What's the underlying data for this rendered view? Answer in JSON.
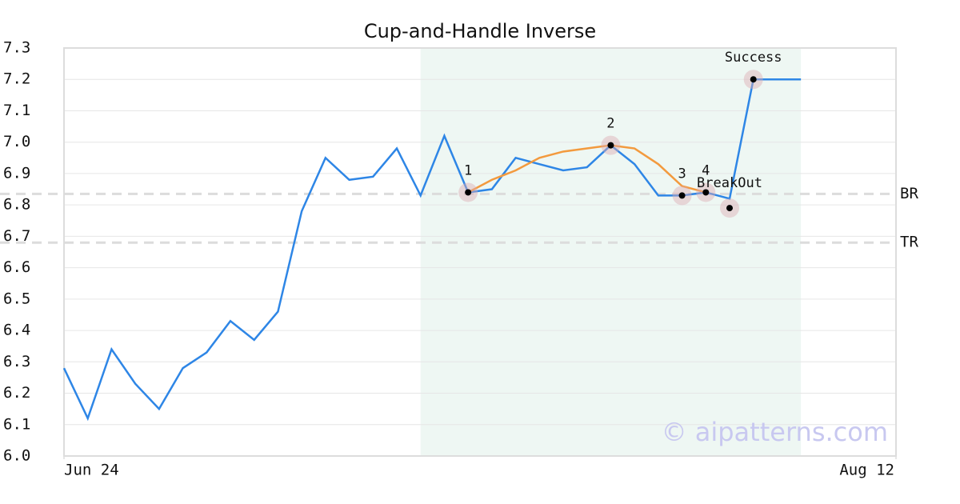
{
  "chart_data": {
    "type": "line",
    "title": "Cup-and-Handle Inverse",
    "watermark": "© aipatterns.com",
    "xlim": [
      0,
      35
    ],
    "xticks": [
      {
        "value": 0,
        "label": "Jun 24"
      },
      {
        "value": 35,
        "label": "Aug 12"
      }
    ],
    "ylim": [
      6.0,
      7.3
    ],
    "yticks": [
      {
        "value": 6,
        "label": "6.0"
      },
      6.1,
      6.2,
      6.3,
      6.4,
      6.5,
      6.6,
      6.7,
      6.8,
      6.9,
      {
        "value": 7,
        "label": "7.0"
      },
      7.1,
      7.2,
      7.3
    ],
    "grid": true,
    "highlight": [
      15,
      31
    ],
    "highlight_color": "#eef7f3",
    "series": [
      {
        "color": "#2e86e6",
        "x": [
          0,
          1,
          2,
          3,
          4,
          5,
          6,
          7,
          8,
          9,
          10,
          11,
          12,
          13,
          14,
          15,
          16,
          17,
          18,
          19,
          20,
          21,
          22,
          23,
          24,
          25,
          26,
          27,
          28,
          29,
          30,
          31
        ],
        "values": [
          6.28,
          6.12,
          6.34,
          6.23,
          6.15,
          6.28,
          6.33,
          6.43,
          6.37,
          6.46,
          6.78,
          6.95,
          6.88,
          6.89,
          6.98,
          6.83,
          7.02,
          6.84,
          6.85,
          6.95,
          6.93,
          6.91,
          6.92,
          6.99,
          6.93,
          6.83,
          6.83,
          6.84,
          6.82,
          7.2,
          7.2,
          7.2
        ]
      },
      {
        "color": "#f39a3e",
        "x": [
          17,
          18,
          19,
          20,
          21,
          22,
          23,
          24,
          25,
          26,
          27
        ],
        "values": [
          6.84,
          6.88,
          6.91,
          6.95,
          6.97,
          6.98,
          6.99,
          6.98,
          6.93,
          6.86,
          6.84
        ]
      }
    ],
    "levels": [
      {
        "label": "BR",
        "value": 6.835
      },
      {
        "label": "TR",
        "value": 6.68
      }
    ],
    "markers": [
      {
        "label": "1",
        "x": 17,
        "y": 6.84
      },
      {
        "label": "2",
        "x": 23,
        "y": 6.99
      },
      {
        "label": "3",
        "x": 26,
        "y": 6.83
      },
      {
        "label": "4",
        "x": 27,
        "y": 6.84
      },
      {
        "label": "BreakOut",
        "x": 28,
        "y": 6.79
      },
      {
        "label": "Success",
        "x": 29,
        "y": 7.2
      }
    ]
  }
}
